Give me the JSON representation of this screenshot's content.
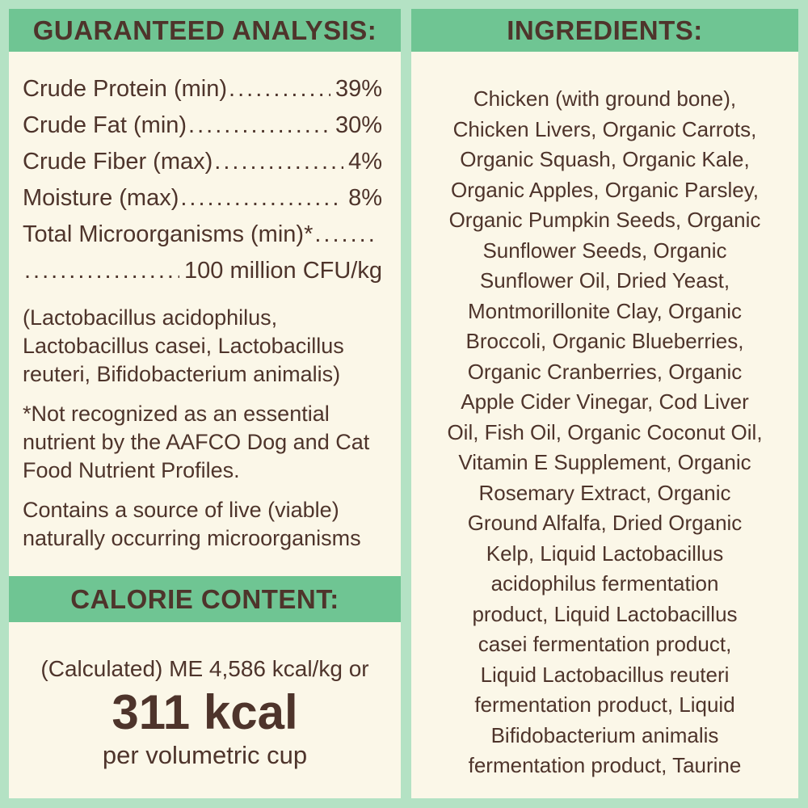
{
  "palette": {
    "background": "#b4e2c4",
    "band": "#6fc593",
    "panel": "#fbf7e8",
    "text": "#4e342b"
  },
  "guaranteed_analysis": {
    "title": "GUARANTEED ANALYSIS:",
    "leader": "............................................................",
    "rows": [
      {
        "label": "Crude Protein (min)",
        "value": "39%"
      },
      {
        "label": "Crude Fat (min)",
        "value": "30%"
      },
      {
        "label": "Crude Fiber (max)",
        "value": "4%"
      },
      {
        "label": "Moisture (max)",
        "value": "8%"
      },
      {
        "label": "Total Microorganisms (min)*",
        "value": ""
      },
      {
        "label": "",
        "value": "100 million CFU/kg"
      }
    ],
    "notes": [
      "(Lactobacillus acidophilus,\nLactobacillus casei, Lactobacillus\nreuteri, Bifidobacterium animalis)",
      "*Not recognized as an essential\nnutrient by the AAFCO Dog and Cat\nFood Nutrient Profiles.",
      "Contains a source of live (viable)\nnaturally occurring microorganisms"
    ]
  },
  "calorie_content": {
    "title": "CALORIE CONTENT:",
    "metabolizable_energy": "(Calculated) ME 4,586 kcal/kg or",
    "kcal_per_cup": "311 kcal",
    "per_cup_label": "per volumetric cup"
  },
  "ingredients": {
    "title": "INGREDIENTS:",
    "text": "Chicken (with ground bone),\nChicken Livers, Organic Carrots,\nOrganic Squash, Organic Kale,\nOrganic Apples, Organic Parsley,\nOrganic Pumpkin Seeds, Organic\nSunflower Seeds, Organic\nSunflower Oil, Dried Yeast,\nMontmorillonite Clay, Organic\nBroccoli, Organic Blueberries,\nOrganic Cranberries, Organic\nApple Cider Vinegar, Cod Liver\nOil, Fish Oil, Organic Coconut Oil,\nVitamin E Supplement, Organic\nRosemary Extract, Organic\nGround Alfalfa, Dried Organic\nKelp, Liquid Lactobacillus\nacidophilus fermentation\nproduct, Liquid Lactobacillus\ncasei fermentation product,\nLiquid Lactobacillus reuteri\nfermentation product, Liquid\nBifidobacterium animalis\nfermentation product, Taurine"
  }
}
